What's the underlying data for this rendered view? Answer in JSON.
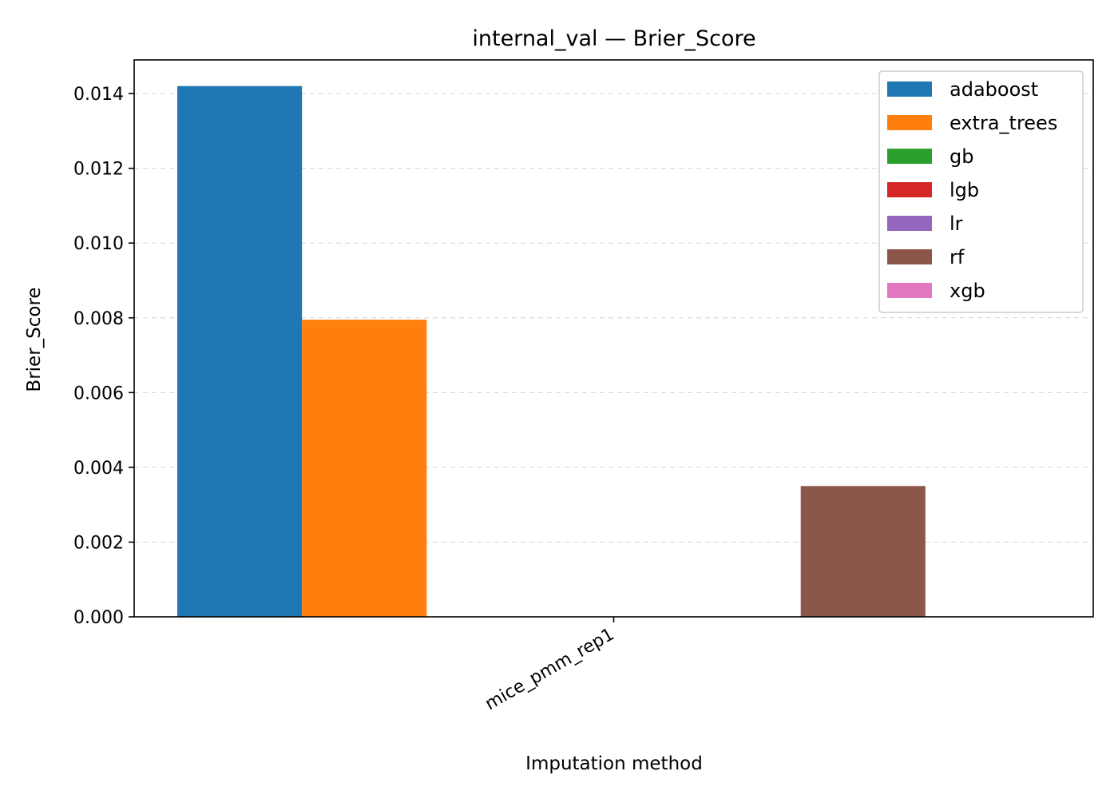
{
  "chart_data": {
    "type": "bar",
    "title": "internal_val — Brier_Score",
    "xlabel": "Imputation method",
    "ylabel": "Brier_Score",
    "categories": [
      "mice_pmm_rep1"
    ],
    "ylim": [
      0,
      0.0149
    ],
    "yticks": [
      "0.000",
      "0.002",
      "0.004",
      "0.006",
      "0.008",
      "0.010",
      "0.012",
      "0.014"
    ],
    "grid": "y-dashed",
    "legend_position": "top-right",
    "series": [
      {
        "name": "adaboost",
        "color": "#1f77b4",
        "values": [
          0.0142
        ]
      },
      {
        "name": "extra_trees",
        "color": "#ff7f0e",
        "values": [
          0.00795
        ]
      },
      {
        "name": "gb",
        "color": "#2ca02c",
        "values": [
          0
        ]
      },
      {
        "name": "lgb",
        "color": "#d62728",
        "values": [
          0
        ]
      },
      {
        "name": "lr",
        "color": "#9467bd",
        "values": [
          0
        ]
      },
      {
        "name": "rf",
        "color": "#8c564b",
        "values": [
          0.0035
        ]
      },
      {
        "name": "xgb",
        "color": "#e377c2",
        "values": [
          0
        ]
      }
    ]
  }
}
